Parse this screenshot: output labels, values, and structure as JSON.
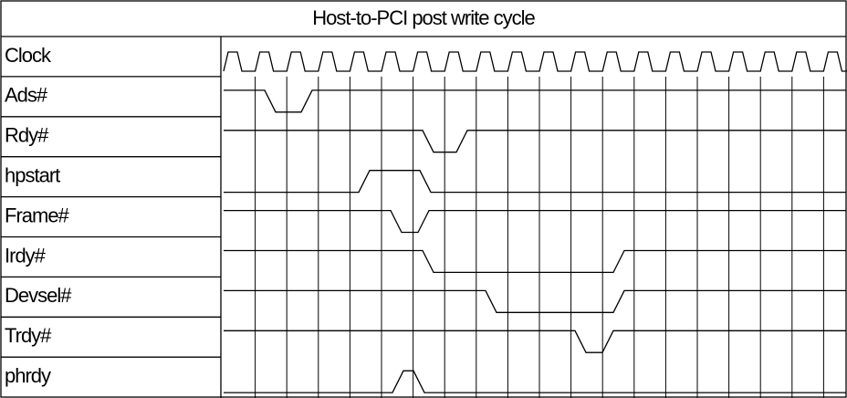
{
  "title": "Host-to-PCI post write cycle",
  "signals": [
    "Clock",
    "Ads#",
    "Rdy#",
    "hpstart",
    "Frame#",
    "Irdy#",
    "Devsel#",
    "Trdy#",
    "phrdy"
  ]
}
